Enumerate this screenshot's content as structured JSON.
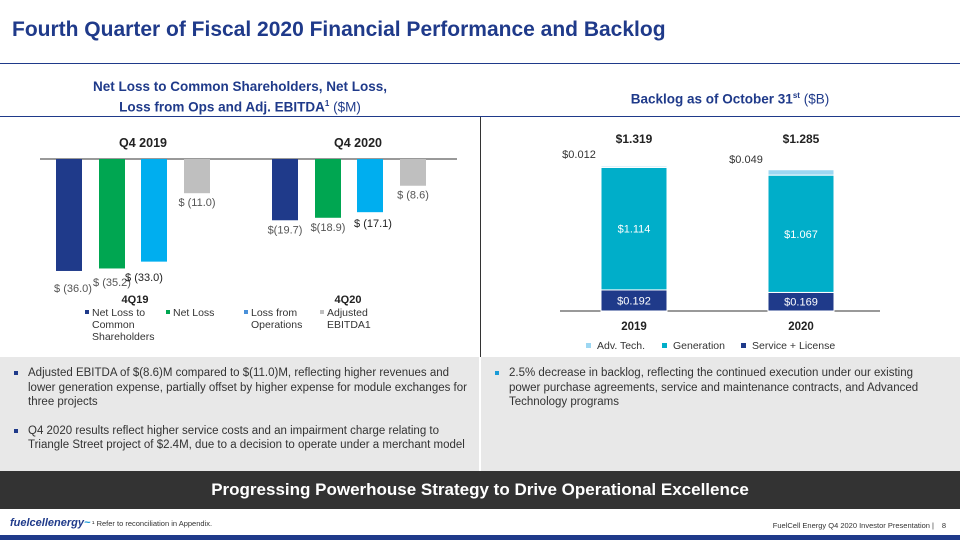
{
  "header": {
    "title": "Fourth Quarter of Fiscal 2020 Financial Performance and Backlog"
  },
  "left_section": {
    "title_line1": "Net Loss to Common Shareholders, Net Loss,",
    "title_line2_main": "Loss from Ops and Adj. EBITDA",
    "title_sup": "1",
    "title_unit": "($M)"
  },
  "right_section": {
    "title_main": "Backlog as of October 31",
    "title_sup": "st",
    "title_unit": "($B)"
  },
  "chart_data": [
    {
      "type": "bar",
      "title": "Net Loss to Common Shareholders, Net Loss, Loss from Ops and Adj. EBITDA1 ($M)",
      "group_titles": [
        "Q4 2019",
        "Q4 2020"
      ],
      "categories": [
        "4Q19",
        "4Q20"
      ],
      "ylim": [
        -40,
        0
      ],
      "series": [
        {
          "name": "Net Loss to Common Shareholders",
          "values": [
            -36.0,
            -19.7
          ],
          "labels": [
            "$ (36.0)",
            "$(19.7)"
          ],
          "color": "#1f3a8a"
        },
        {
          "name": "Net Loss",
          "values": [
            -35.2,
            -18.9
          ],
          "labels": [
            "$ (35.2)",
            "$(18.9)"
          ],
          "color": "#00a651"
        },
        {
          "name": "Loss from Operations",
          "values": [
            -33.0,
            -17.1
          ],
          "labels": [
            "$ (33.0)",
            "$ (17.1)"
          ],
          "color": "#00aeef"
        },
        {
          "name": "Adjusted EBITDA1",
          "values": [
            -11.0,
            -8.6
          ],
          "labels": [
            "$ (11.0)",
            "$ (8.6)"
          ],
          "color": "#bfbfbf"
        }
      ],
      "legend": [
        {
          "lines": [
            "Net Loss to",
            "Common",
            "Shareholders"
          ],
          "color": "#1f3a8a"
        },
        {
          "lines": [
            "Net Loss"
          ],
          "color": "#00a651"
        },
        {
          "lines": [
            "Loss from",
            "Operations"
          ],
          "color": "#4a90d9"
        },
        {
          "lines": [
            "Adjusted",
            "EBITDA1"
          ],
          "color": "#bfbfbf"
        }
      ],
      "legend_position": "bottom"
    },
    {
      "type": "bar",
      "stacked": true,
      "title": "Backlog as of October 31st ($B)",
      "categories": [
        "2019",
        "2020"
      ],
      "totals": [
        "$1.319",
        "$1.285"
      ],
      "ylim": [
        0,
        1.319
      ],
      "series": [
        {
          "name": "Service + License",
          "values": [
            0.192,
            0.169
          ],
          "labels": [
            "$0.192",
            "$0.169"
          ],
          "color": "#1f3a8a"
        },
        {
          "name": "Generation",
          "values": [
            1.114,
            1.067
          ],
          "labels": [
            "$1.114",
            "$1.067"
          ],
          "color": "#00aec9"
        },
        {
          "name": "Adv. Tech.",
          "values": [
            0.012,
            0.049
          ],
          "labels": [
            "$0.012",
            "$0.049"
          ],
          "color": "#9dd7f2"
        }
      ],
      "legend_order": [
        "Adv. Tech.",
        "Generation",
        "Service + License"
      ],
      "legend_position": "bottom"
    }
  ],
  "left_bullets": [
    "Adjusted EBITDA of $(8.6)M compared to $(11.0)M, reflecting higher revenues and lower generation expense, partially offset by higher expense for module exchanges for three projects",
    "Q4 2020 results reflect higher service costs and an impairment charge relating to Triangle Street project of $2.4M, due to a decision to operate under a merchant model"
  ],
  "right_bullets": [
    "2.5% decrease in backlog, reflecting the continued execution under our existing power purchase agreements, service and maintenance contracts, and Advanced Technology programs"
  ],
  "banner": {
    "text": "Progressing Powerhouse Strategy to Drive Operational Excellence"
  },
  "footer": {
    "logo_text": "fuelcellenergy",
    "footnote": "¹ Refer to reconciliation in Appendix.",
    "presentation": "FuelCell Energy Q4 2020 Investor Presentation |",
    "page_number": "8"
  }
}
